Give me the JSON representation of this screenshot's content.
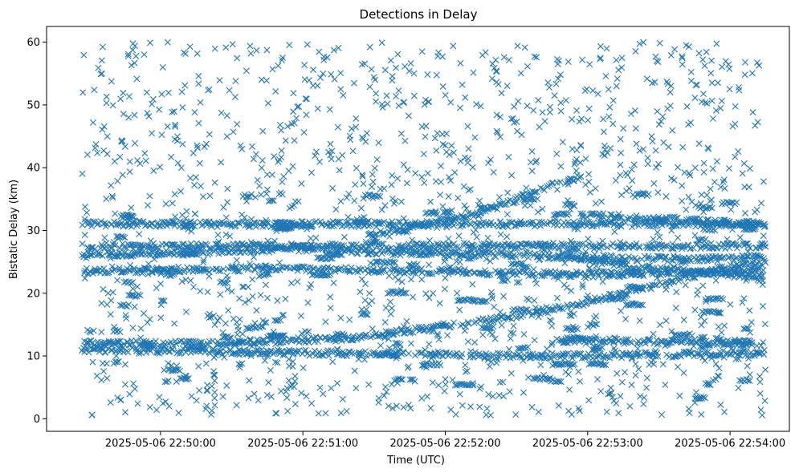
{
  "chart_data": {
    "type": "scatter",
    "title": "Detections in Delay",
    "xlabel": "Time (UTC)",
    "ylabel": "Bistatic Delay (km)",
    "marker": "x",
    "color": "#1f77b4",
    "grid": false,
    "xlim": [
      "2025-05-06 22:49:12",
      "2025-05-06 22:54:25"
    ],
    "ylim": [
      -2,
      62.5
    ],
    "x_ticks": [
      "2025-05-06 22:50:00",
      "2025-05-06 22:51:00",
      "2025-05-06 22:52:00",
      "2025-05-06 22:53:00",
      "2025-05-06 22:54:00"
    ],
    "y_ticks": [
      0,
      10,
      20,
      30,
      40,
      50,
      60
    ],
    "time_range": [
      "2025-05-06 22:49:27",
      "2025-05-06 22:54:15"
    ],
    "tracks": [
      {
        "delay": [
          [
            0,
            12.0
          ],
          [
            60,
            12.0
          ],
          [
            110,
            12.8
          ],
          [
            160,
            15.0
          ],
          [
            200,
            17.5
          ],
          [
            240,
            21.0
          ],
          [
            270,
            24.0
          ],
          [
            288,
            24.6
          ]
        ]
      },
      {
        "delay": [
          [
            0,
            26.0
          ],
          [
            90,
            27.0
          ],
          [
            130,
            26.5
          ],
          [
            190,
            26.0
          ],
          [
            240,
            25.5
          ],
          [
            288,
            25.5
          ]
        ]
      },
      {
        "delay": [
          [
            0,
            23.5
          ],
          [
            80,
            24.0
          ],
          [
            140,
            23.5
          ],
          [
            210,
            23.0
          ],
          [
            288,
            23.5
          ]
        ]
      },
      {
        "delay": [
          [
            120,
            29.0
          ],
          [
            170,
            33.0
          ],
          [
            200,
            37.5
          ],
          [
            210,
            38.5
          ]
        ]
      },
      {
        "delay": [
          [
            200,
            26.0
          ],
          [
            240,
            24.0
          ],
          [
            288,
            22.5
          ]
        ]
      },
      {
        "delay": [
          [
            210,
            32.5
          ],
          [
            260,
            31.5
          ],
          [
            288,
            31.0
          ]
        ]
      },
      {
        "delay": [
          [
            0,
            11.0
          ],
          [
            100,
            10.5
          ],
          [
            200,
            10.0
          ],
          [
            288,
            10.5
          ]
        ]
      },
      {
        "delay": [
          [
            200,
            12.5
          ],
          [
            288,
            12.0
          ]
        ]
      },
      {
        "delay": [
          [
            0,
            31.0
          ],
          [
            288,
            31.0
          ]
        ]
      },
      {
        "delay": [
          [
            0,
            27.5
          ],
          [
            288,
            27.5
          ]
        ]
      }
    ],
    "noise_delay_range": [
      0.5,
      60
    ]
  }
}
